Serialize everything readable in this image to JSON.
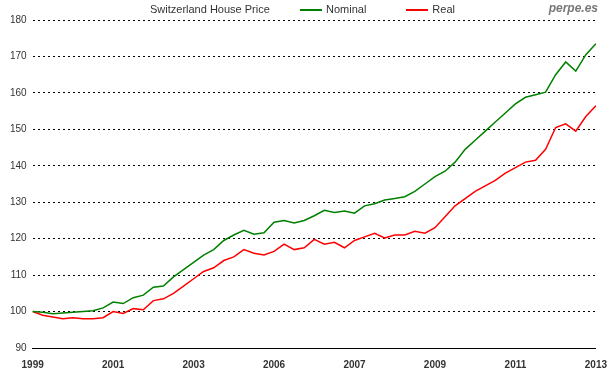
{
  "chart_data": {
    "type": "line",
    "title": "Switzerland House Price",
    "annotations": [
      "perpe.es"
    ],
    "categories": [
      "1999",
      null,
      null,
      null,
      null,
      null,
      null,
      null,
      "2001",
      null,
      null,
      null,
      null,
      null,
      null,
      null,
      "2003",
      null,
      null,
      null,
      null,
      null,
      null,
      null,
      "2006",
      null,
      null,
      null,
      null,
      null,
      null,
      null,
      "2007",
      null,
      null,
      null,
      null,
      null,
      null,
      null,
      "2009",
      null,
      null,
      null,
      null,
      null,
      null,
      null,
      "2011",
      null,
      null,
      null,
      null,
      null,
      null,
      null,
      "2013"
    ],
    "series": [
      {
        "name": "Nominal",
        "color": "#008000",
        "values": [
          100,
          99.8,
          99.4,
          99.6,
          99.8,
          100,
          100.2,
          101,
          102.6,
          102.2,
          103.8,
          104.5,
          106.7,
          107,
          109.5,
          111.5,
          113.5,
          115.5,
          117,
          119.5,
          121,
          122.3,
          121.2,
          121.6,
          124.5,
          125,
          124.3,
          125,
          126.3,
          127.8,
          127.2,
          127.6,
          127,
          129,
          129.6,
          130.6,
          131,
          131.5,
          133,
          135,
          137,
          138.5,
          141,
          144.5,
          147,
          149.5,
          152,
          154.5,
          157,
          158.8,
          159.5,
          160.2,
          165,
          168.5,
          166,
          170.5,
          173.5
        ]
      },
      {
        "name": "Real",
        "color": "#ff0000",
        "values": [
          100,
          99,
          98.5,
          98,
          98.3,
          98,
          98,
          98.3,
          100,
          99.5,
          100.8,
          100.5,
          103,
          103.5,
          105,
          107,
          109,
          111,
          112,
          114,
          115,
          117,
          116,
          115.5,
          116.5,
          118.5,
          117,
          117.5,
          119.8,
          118.5,
          119,
          117.5,
          119.5,
          120.5,
          121.5,
          120.2,
          121,
          121,
          122,
          121.5,
          123,
          126,
          129,
          131,
          133,
          134.5,
          136,
          138,
          139.5,
          141,
          141.5,
          144.5,
          150.5,
          151.5,
          149.5,
          153.5,
          156.5
        ]
      }
    ],
    "ylim": [
      90,
      180
    ],
    "yticks": [
      90,
      100,
      110,
      120,
      130,
      140,
      150,
      160,
      170,
      180
    ],
    "grid": true,
    "legend": "top"
  }
}
